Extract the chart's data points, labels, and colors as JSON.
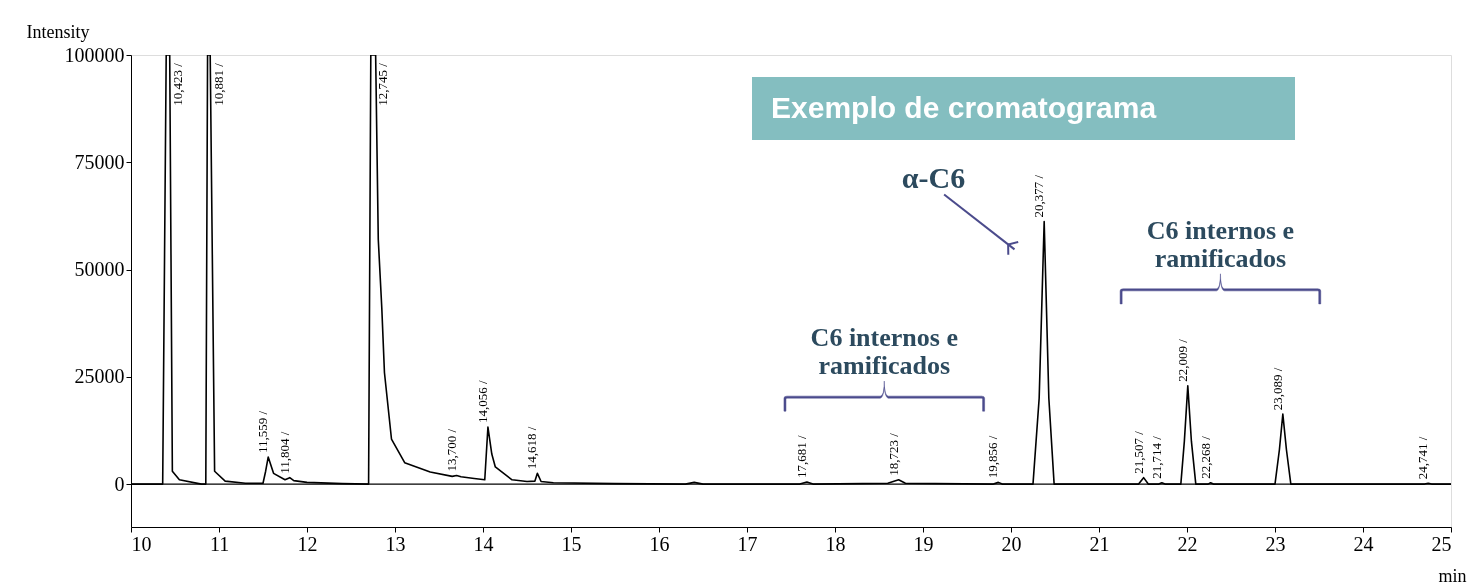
{
  "chart_data": {
    "type": "line",
    "title": "Exemplo de cromatograma",
    "xlabel": "min",
    "ylabel": "Intensity",
    "xlim": [
      10,
      25
    ],
    "xticks": [
      10,
      11,
      12,
      13,
      14,
      15,
      16,
      17,
      18,
      19,
      20,
      21,
      22,
      23,
      24,
      25
    ],
    "ylim": [
      -10000,
      100000
    ],
    "yticks": [
      0,
      25000,
      50000,
      75000,
      100000
    ],
    "grid": false,
    "marker": "none",
    "line_style": "solid",
    "ref_lines": [
      {
        "axis": "y",
        "value": 0,
        "color": "#000000"
      }
    ],
    "series": [
      {
        "color": "#000000",
        "x": [
          10.0,
          10.3,
          10.36,
          10.4,
          10.423,
          10.44,
          10.47,
          10.55,
          10.8,
          10.85,
          10.87,
          10.881,
          10.9,
          10.95,
          11.07,
          11.3,
          11.5,
          11.53,
          11.559,
          11.62,
          11.75,
          11.804,
          11.85,
          12.0,
          12.4,
          12.7,
          12.725,
          12.745,
          12.78,
          12.81,
          12.85,
          12.88,
          12.96,
          13.11,
          13.4,
          13.65,
          13.7,
          13.75,
          13.9,
          14.02,
          14.056,
          14.1,
          14.14,
          14.33,
          14.5,
          14.59,
          14.618,
          14.66,
          14.8,
          15.5,
          16.3,
          16.4,
          16.5,
          17.6,
          17.681,
          17.75,
          18.6,
          18.723,
          18.8,
          19.8,
          19.856,
          19.9,
          20.25,
          20.32,
          20.377,
          20.43,
          20.49,
          21.45,
          21.507,
          21.56,
          21.68,
          21.714,
          21.75,
          21.93,
          21.97,
          22.009,
          22.05,
          22.1,
          22.24,
          22.268,
          22.3,
          23.0,
          23.05,
          23.089,
          23.13,
          23.18,
          24.7,
          24.741,
          24.78,
          25.0
        ],
        "values": [
          0,
          0,
          0,
          100000,
          100000,
          100000,
          3000,
          1000,
          0,
          0,
          100000,
          100000,
          100000,
          3000,
          700,
          200,
          200,
          3000,
          6300,
          2500,
          1000,
          1500,
          800,
          400,
          100,
          0,
          100000,
          100000,
          100000,
          57000,
          41000,
          26000,
          10500,
          5000,
          2800,
          1800,
          2000,
          1700,
          1300,
          1000,
          13300,
          7000,
          4000,
          1000,
          600,
          700,
          2500,
          600,
          300,
          100,
          0,
          400,
          0,
          0,
          500,
          0,
          200,
          1000,
          200,
          0,
          400,
          0,
          0,
          20000,
          61200,
          20000,
          0,
          0,
          1500,
          0,
          0,
          300,
          0,
          0,
          10000,
          22900,
          10000,
          0,
          0,
          300,
          0,
          0,
          8000,
          16300,
          8000,
          0,
          0,
          200,
          0,
          0
        ]
      }
    ],
    "annotations": [
      {
        "text": "10,423 /",
        "x": 10.423,
        "y": 100000
      },
      {
        "text": "10,881 /",
        "x": 10.881,
        "y": 100000
      },
      {
        "text": "11,559 /",
        "x": 11.559,
        "y": 6300
      },
      {
        "text": "11,804 /",
        "x": 11.804,
        "y": 1500
      },
      {
        "text": "12,745 /",
        "x": 12.745,
        "y": 100000
      },
      {
        "text": "13,700 /",
        "x": 13.7,
        "y": 2000
      },
      {
        "text": "14,056 /",
        "x": 14.056,
        "y": 13300
      },
      {
        "text": "14,618 /",
        "x": 14.618,
        "y": 2500
      },
      {
        "text": "17,681 /",
        "x": 17.681,
        "y": 500
      },
      {
        "text": "18,723 /",
        "x": 18.723,
        "y": 1000
      },
      {
        "text": "19,856 /",
        "x": 19.856,
        "y": 400
      },
      {
        "text": "20,377 /",
        "x": 20.377,
        "y": 61200
      },
      {
        "text": "21,507 /",
        "x": 21.507,
        "y": 1500
      },
      {
        "text": "21,714 /",
        "x": 21.714,
        "y": 300
      },
      {
        "text": "22,009 /",
        "x": 22.009,
        "y": 22900
      },
      {
        "text": "22,268 /",
        "x": 22.268,
        "y": 300
      },
      {
        "text": "23,089 /",
        "x": 23.089,
        "y": 16300
      },
      {
        "text": "24,741 /",
        "x": 24.741,
        "y": 200
      },
      "α-C6",
      "C6 internos e\nramificados",
      "C6 internos e\nramificados"
    ]
  }
}
